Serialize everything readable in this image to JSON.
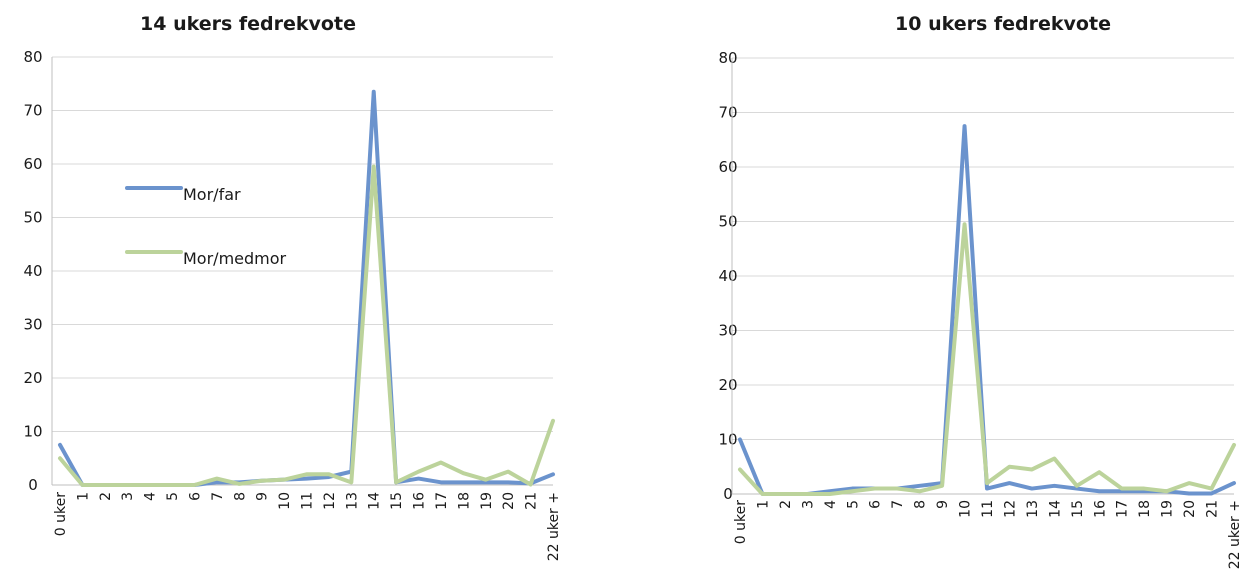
{
  "chart_data": [
    {
      "type": "line",
      "title": "14 ukers fedrekvote",
      "categories": [
        "0 uker",
        "1",
        "2",
        "3",
        "4",
        "5",
        "6",
        "7",
        "8",
        "9",
        "10",
        "11",
        "12",
        "13",
        "14",
        "15",
        "16",
        "17",
        "18",
        "19",
        "20",
        "21",
        "22 uker +"
      ],
      "ylim": [
        0,
        80
      ],
      "yticks": [
        0,
        10,
        20,
        30,
        40,
        50,
        60,
        70,
        80
      ],
      "grid": true,
      "legend": "inside-left",
      "series": [
        {
          "name": "Mor/far",
          "color": "#6b93cd",
          "values": [
            7.5,
            0,
            0,
            0,
            0,
            0,
            0,
            0.5,
            0.5,
            0.8,
            1.0,
            1.2,
            1.5,
            2.5,
            73.5,
            0.5,
            1.2,
            0.5,
            0.5,
            0.5,
            0.5,
            0.3,
            2.0
          ]
        },
        {
          "name": "Mor/medmor",
          "color": "#bcd39b",
          "values": [
            5.0,
            0,
            0,
            0,
            0,
            0,
            0,
            1.2,
            0.2,
            0.8,
            1.0,
            2.0,
            2.0,
            0.5,
            59.5,
            0.5,
            2.5,
            4.2,
            2.2,
            1.0,
            2.5,
            0.1,
            12.0
          ]
        }
      ]
    },
    {
      "type": "line",
      "title": "10 ukers fedrekvote",
      "categories": [
        "0 uker",
        "1",
        "2",
        "3",
        "4",
        "5",
        "6",
        "7",
        "8",
        "9",
        "10",
        "11",
        "12",
        "13",
        "14",
        "15",
        "16",
        "17",
        "18",
        "19",
        "20",
        "21",
        "22 uker +"
      ],
      "ylim": [
        0,
        80
      ],
      "yticks": [
        0,
        10,
        20,
        30,
        40,
        50,
        60,
        70,
        80
      ],
      "grid": true,
      "series": [
        {
          "name": "Mor/far",
          "color": "#6b93cd",
          "values": [
            10.0,
            0,
            0,
            0,
            0.5,
            1.0,
            1.0,
            1.0,
            1.5,
            2.0,
            67.5,
            1.0,
            2.0,
            1.0,
            1.5,
            1.0,
            0.5,
            0.5,
            0.5,
            0.5,
            0.1,
            0.1,
            2.0
          ]
        },
        {
          "name": "Mor/medmor",
          "color": "#bcd39b",
          "values": [
            4.5,
            0,
            0,
            0,
            0,
            0.5,
            1.0,
            1.0,
            0.5,
            1.5,
            49.5,
            2.0,
            5.0,
            4.5,
            6.5,
            1.5,
            4.0,
            1.0,
            1.0,
            0.5,
            2.0,
            1.0,
            9.0
          ]
        }
      ]
    }
  ]
}
